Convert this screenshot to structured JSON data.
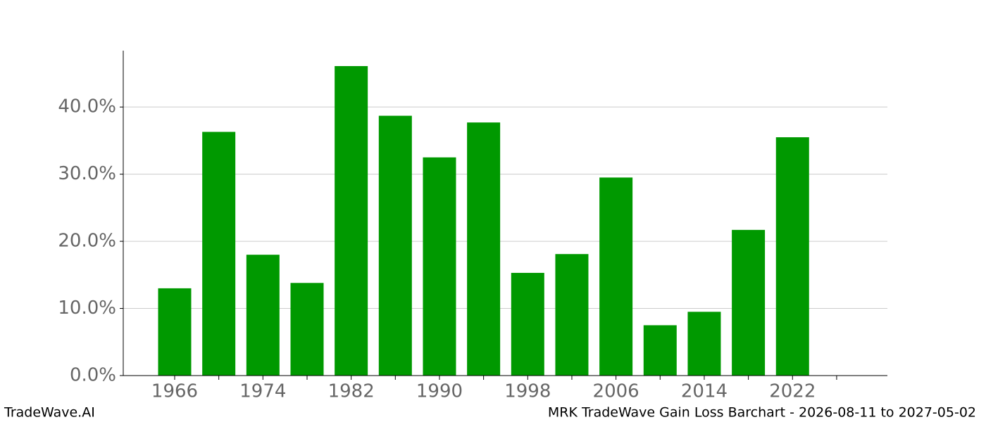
{
  "chart_data": {
    "type": "bar",
    "x": [
      1966,
      1970,
      1974,
      1978,
      1982,
      1986,
      1990,
      1994,
      1998,
      2002,
      2006,
      2010,
      2014,
      2018,
      2022
    ],
    "values": [
      13.0,
      36.3,
      18.0,
      13.8,
      46.1,
      38.7,
      32.5,
      37.7,
      15.3,
      18.1,
      29.5,
      7.5,
      9.5,
      21.7,
      35.5
    ],
    "color": "#009900",
    "xlim": [
      1961.34,
      2030.6
    ],
    "xticks": [
      1966,
      1974,
      1982,
      1990,
      1998,
      2006,
      2014,
      2022
    ],
    "xminorticks": [
      1970,
      1978,
      1986,
      1994,
      2002,
      2010,
      2018,
      2026
    ],
    "ylim": [
      0,
      48.4
    ],
    "yticks": [
      {
        "value": 0,
        "label": "0.0%"
      },
      {
        "value": 10,
        "label": "10.0%"
      },
      {
        "value": 20,
        "label": "20.0%"
      },
      {
        "value": 30,
        "label": "30.0%"
      },
      {
        "value": 40,
        "label": "40.0%"
      }
    ],
    "grid": true
  },
  "footer": {
    "left": "TradeWave.AI",
    "right": "MRK TradeWave Gain Loss Barchart - 2026-08-11 to 2027-05-02"
  }
}
